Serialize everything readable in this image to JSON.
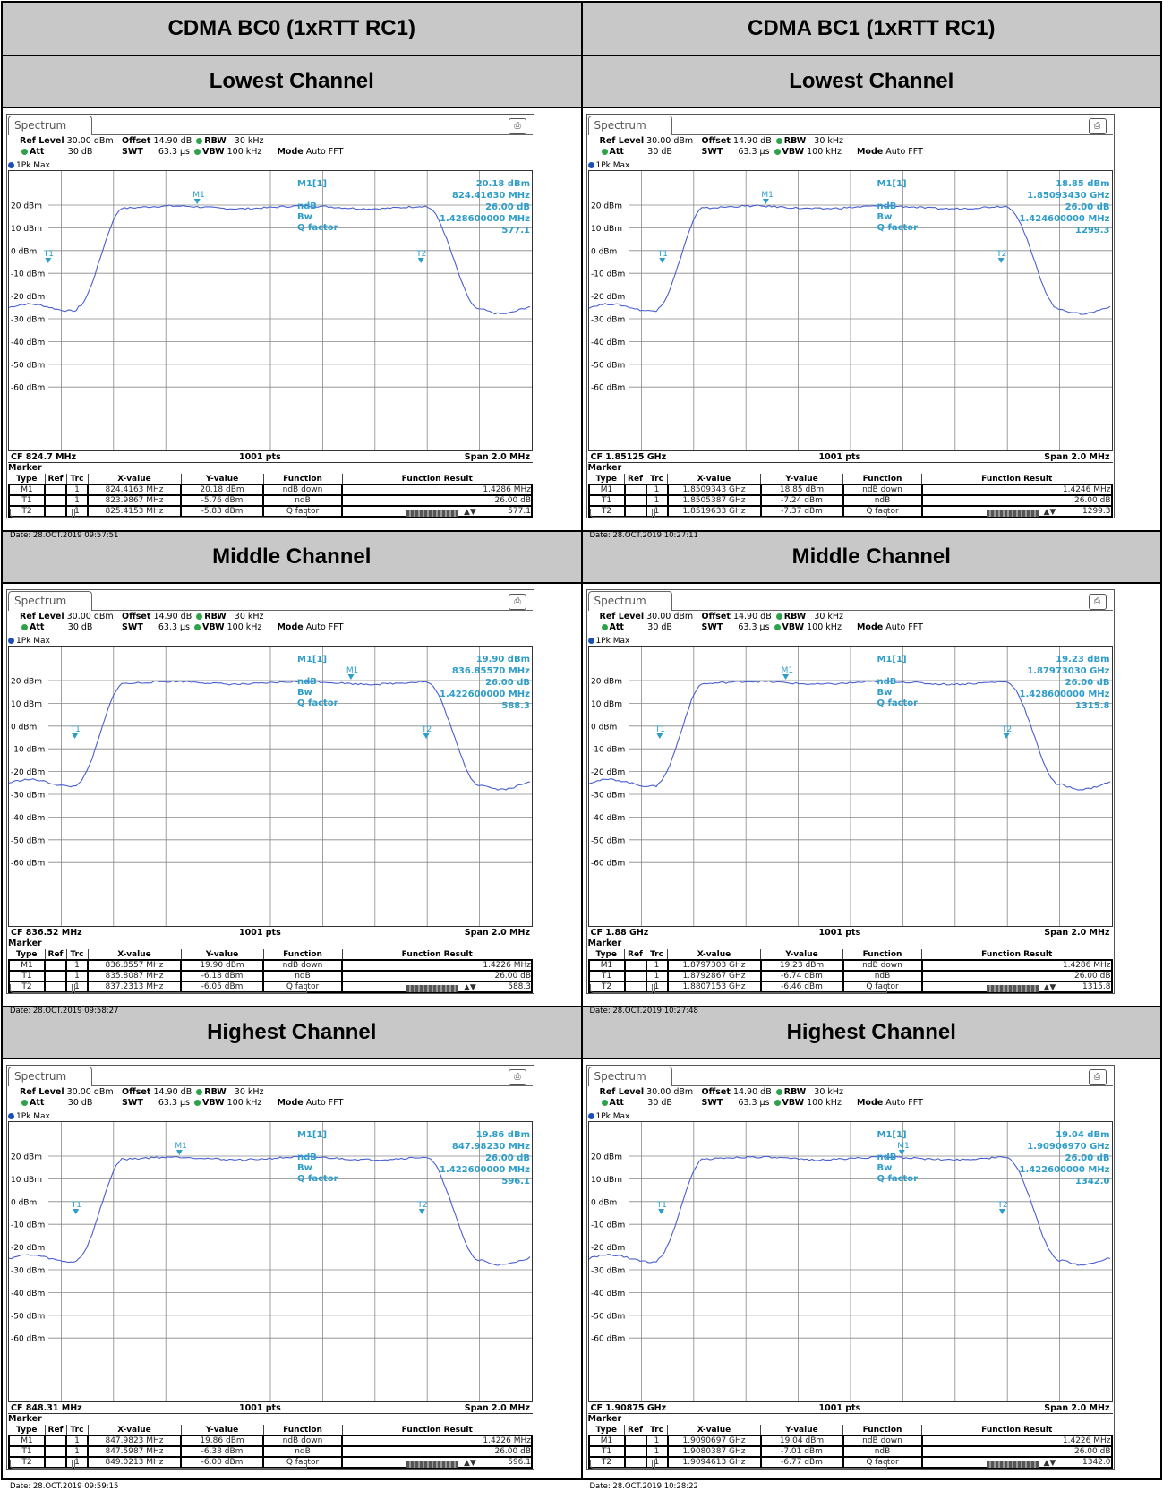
{
  "columns": [
    "CDMA BC0 (1xRTT RC1)",
    "CDMA BC1 (1xRTT RC1)"
  ],
  "row_titles": [
    "Lowest Channel",
    "Middle Channel",
    "Highest Channel"
  ],
  "common": {
    "tab": "Spectrum",
    "ref_level_label": "Ref Level",
    "ref_level": "30.00 dBm",
    "offset_label": "Offset",
    "offset": "14.90 dB",
    "rbw_label": "RBW",
    "rbw": "30 kHz",
    "att_label": "Att",
    "att": "30 dB",
    "swt_label": "SWT",
    "swt": "63.3 µs",
    "vbw_label": "VBW",
    "vbw": "100 kHz",
    "mode_label": "Mode",
    "mode": "Auto FFT",
    "trace": "1Pk Max",
    "y_ticks": [
      "20 dBm",
      "10 dBm",
      "0 dBm",
      "-10 dBm",
      "-20 dBm",
      "-30 dBm",
      "-40 dBm",
      "-50 dBm",
      "-60 dBm"
    ],
    "pts": "1001 pts",
    "span": "Span 2.0 MHz",
    "marker_title": "Marker",
    "headers": [
      "Type",
      "Ref",
      "Trc",
      "X-value",
      "Y-value",
      "Function",
      "Function Result"
    ],
    "info_labels": [
      "M1[1]",
      "ndB",
      "Bw",
      "Q factor"
    ],
    "marker_names": [
      "M1",
      "T1",
      "T2"
    ],
    "functions": [
      "ndB down",
      "ndB",
      "Q factor"
    ],
    "trc": "1"
  },
  "panels": [
    {
      "cf": "CF 824.7 MHz",
      "info": [
        "20.18 dBm",
        "824.41630 MHz",
        "26.00 dB",
        "1.428600000 MHz",
        "577.1"
      ],
      "rows": [
        [
          "824.4163 MHz",
          "20.18 dBm",
          "1.4286 MHz"
        ],
        [
          "823.9867 MHz",
          "-5.76 dBm",
          "26.00 dB"
        ],
        [
          "825.4153 MHz",
          "-5.83 dBm",
          "577.1"
        ]
      ],
      "date": "Date: 28.OCT.2019  09:57:51"
    },
    {
      "cf": "CF 1.85125 GHz",
      "info": [
        "18.85 dBm",
        "1.85093430 GHz",
        "26.00 dB",
        "1.424600000 MHz",
        "1299.3"
      ],
      "rows": [
        [
          "1.8509343 GHz",
          "18.85 dBm",
          "1.4246 MHz"
        ],
        [
          "1.8505387 GHz",
          "-7.24 dBm",
          "26.00 dB"
        ],
        [
          "1.8519633 GHz",
          "-7.37 dBm",
          "1299.3"
        ]
      ],
      "date": "Date: 28.OCT.2019  10:27:11"
    },
    {
      "cf": "CF 836.52 MHz",
      "info": [
        "19.90 dBm",
        "836.85570 MHz",
        "26.00 dB",
        "1.422600000 MHz",
        "588.3"
      ],
      "rows": [
        [
          "836.8557 MHz",
          "19.90 dBm",
          "1.4226 MHz"
        ],
        [
          "835.8087 MHz",
          "-6.18 dBm",
          "26.00 dB"
        ],
        [
          "837.2313 MHz",
          "-6.05 dBm",
          "588.3"
        ]
      ],
      "date": "Date: 28.OCT.2019  09:58:27"
    },
    {
      "cf": "CF 1.88 GHz",
      "info": [
        "19.23 dBm",
        "1.87973030 GHz",
        "26.00 dB",
        "1.428600000 MHz",
        "1315.8"
      ],
      "rows": [
        [
          "1.8797303 GHz",
          "19.23 dBm",
          "1.4286 MHz"
        ],
        [
          "1.8792867 GHz",
          "-6.74 dBm",
          "26.00 dB"
        ],
        [
          "1.8807153 GHz",
          "-6.46 dBm",
          "1315.8"
        ]
      ],
      "date": "Date: 28.OCT.2019  10:27:48"
    },
    {
      "cf": "CF 848.31 MHz",
      "info": [
        "19.86 dBm",
        "847.98230 MHz",
        "26.00 dB",
        "1.422600000 MHz",
        "596.1"
      ],
      "rows": [
        [
          "847.9823 MHz",
          "19.86 dBm",
          "1.4226 MHz"
        ],
        [
          "847.5987 MHz",
          "-6.38 dBm",
          "26.00 dB"
        ],
        [
          "849.0213 MHz",
          "-6.00 dBm",
          "596.1"
        ]
      ],
      "date": "Date: 28.OCT.2019  09:59:15"
    },
    {
      "cf": "CF 1.90875 GHz",
      "info": [
        "19.04 dBm",
        "1.90906970 GHz",
        "26.00 dB",
        "1.422600000 MHz",
        "1342.0"
      ],
      "rows": [
        [
          "1.9090697 GHz",
          "19.04 dBm",
          "1.4226 MHz"
        ],
        [
          "1.9080387 GHz",
          "-7.01 dBm",
          "26.00 dB"
        ],
        [
          "1.9094613 GHz",
          "-6.77 dBm",
          "1342.0"
        ]
      ],
      "date": "Date: 28.OCT.2019  10:28:22"
    }
  ]
}
